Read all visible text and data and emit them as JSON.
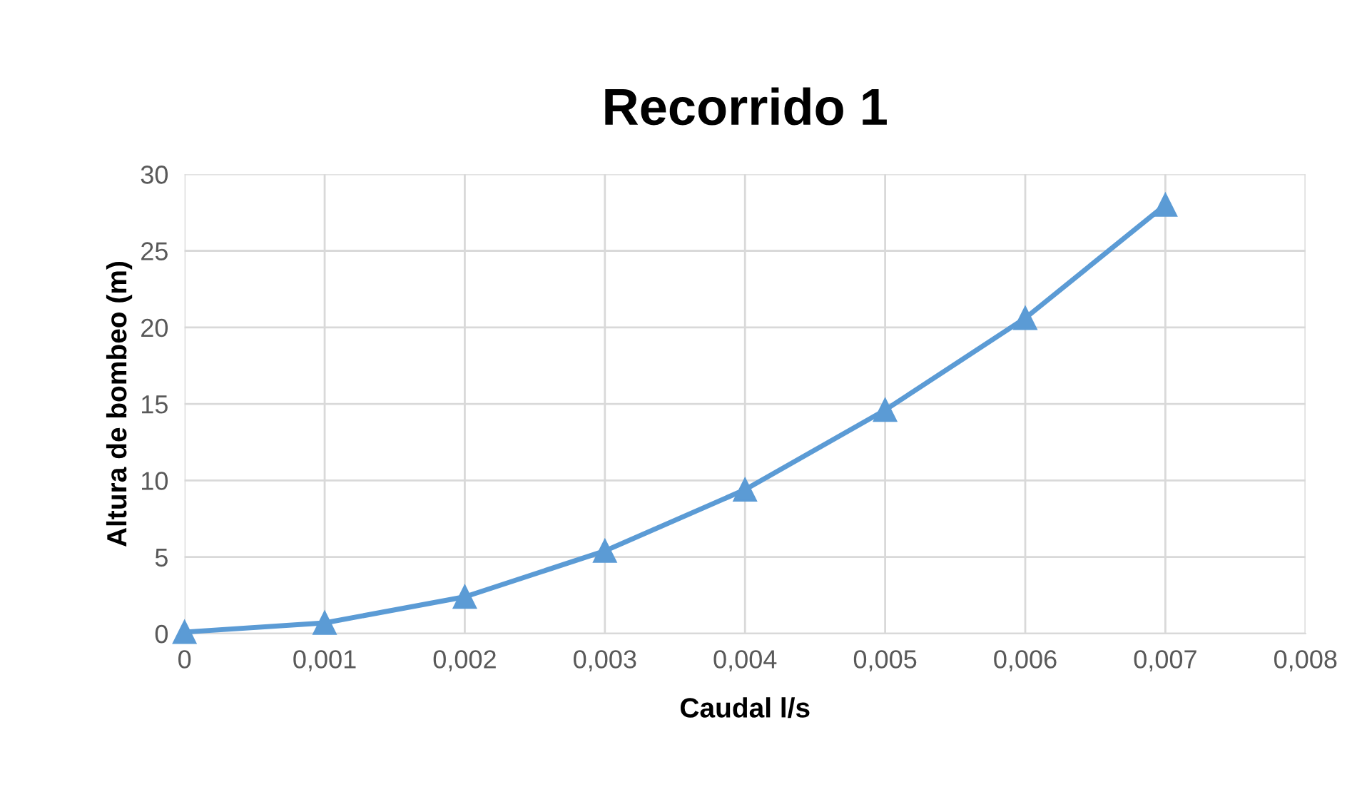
{
  "chart_data": {
    "type": "line",
    "title": "Recorrido 1",
    "xlabel": "Caudal l/s",
    "ylabel": "Altura de bombeo (m)",
    "x": [
      0,
      0.001,
      0.002,
      0.003,
      0.004,
      0.005,
      0.006,
      0.007
    ],
    "series": [
      {
        "color": "#5b9bd5",
        "values": [
          0.1,
          0.7,
          2.4,
          5.4,
          9.4,
          14.6,
          20.6,
          28.0
        ]
      }
    ],
    "xlim": [
      0,
      0.008
    ],
    "ylim": [
      0,
      30
    ],
    "xticks": [
      0,
      {
        "value": 0.001,
        "label": "0,001"
      },
      {
        "value": 0.002,
        "label": "0,002"
      },
      {
        "value": 0.003,
        "label": "0,003"
      },
      {
        "value": 0.004,
        "label": "0,004"
      },
      {
        "value": 0.005,
        "label": "0,005"
      },
      {
        "value": 0.006,
        "label": "0,006"
      },
      {
        "value": 0.007,
        "label": "0,007"
      },
      {
        "value": 0.008,
        "label": "0,008"
      }
    ],
    "yticks": [
      0,
      5,
      10,
      15,
      20,
      25,
      30
    ],
    "grid": true,
    "marker": "triangle",
    "line_style": "solid"
  }
}
